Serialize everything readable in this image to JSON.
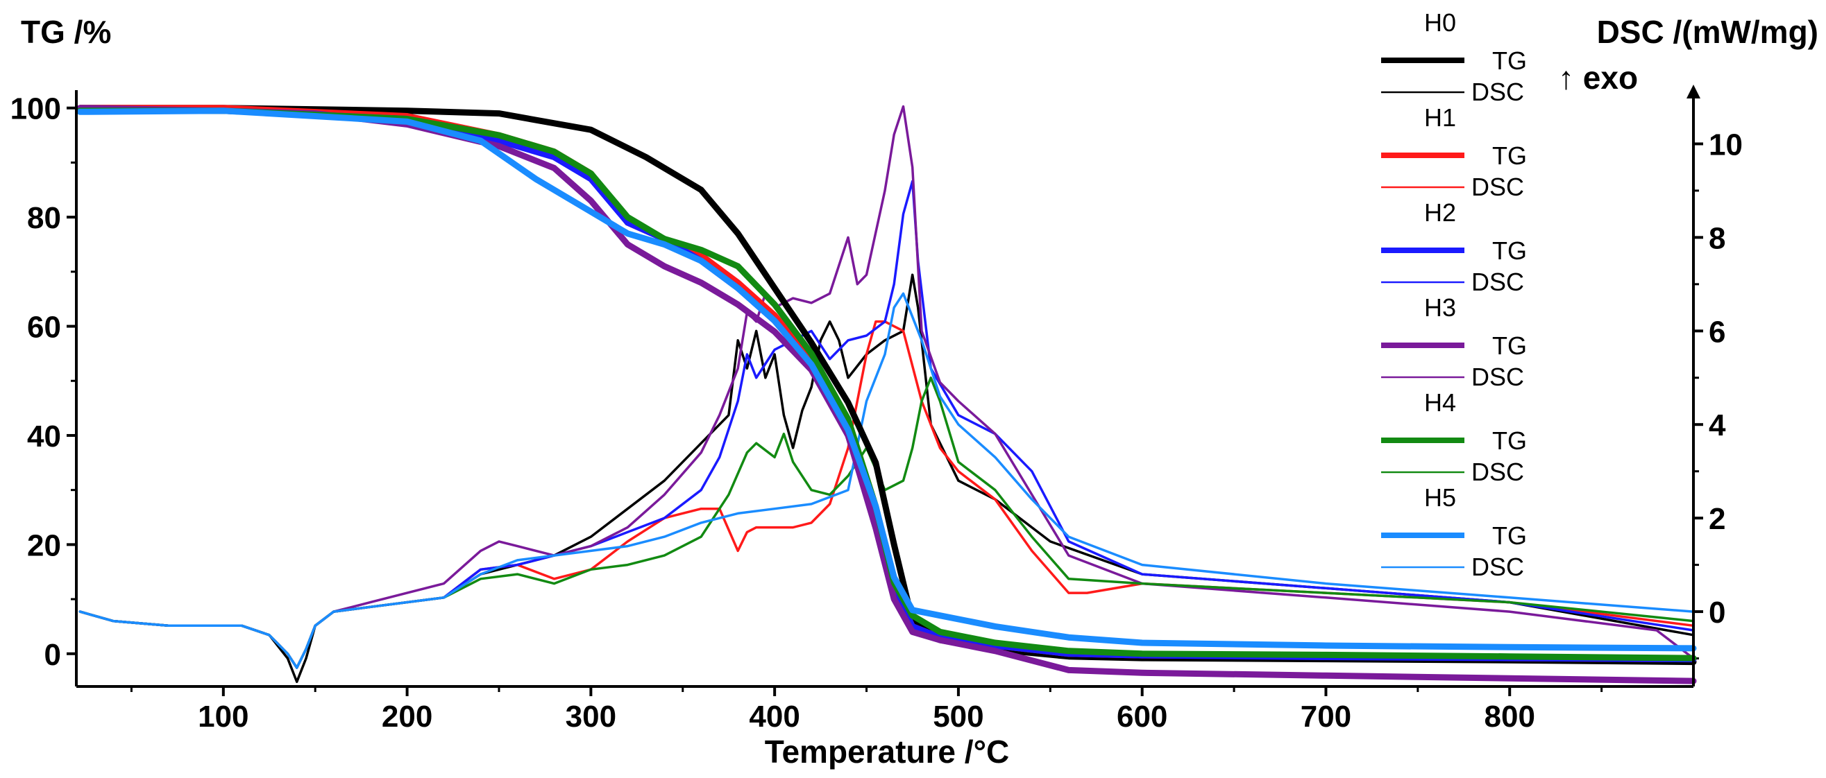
{
  "chart_data": {
    "type": "line",
    "title": "",
    "xlabel": "Temperature /°C",
    "ylabel_left": "TG /%",
    "ylabel_right": "DSC /(mW/mg)",
    "right_axis_note": "↑ exo",
    "xlim": [
      20,
      900
    ],
    "ylim_left": [
      -6,
      102
    ],
    "ylim_right": [
      -1.6,
      11
    ],
    "x_ticks": [
      100,
      200,
      300,
      400,
      500,
      600,
      700,
      800
    ],
    "y_left_ticks": [
      0,
      20,
      40,
      60,
      80,
      100
    ],
    "y_right_ticks": [
      0,
      2,
      4,
      6,
      8,
      10
    ],
    "legend_position": "top-right",
    "colors": {
      "H0": "#000000",
      "H1": "#ff1a1a",
      "H2": "#1a1aff",
      "H3": "#7a1a9a",
      "H4": "#128a12",
      "H5": "#1a8cff"
    },
    "legend": [
      {
        "sample": "H0",
        "tg": "TG",
        "dsc": "DSC"
      },
      {
        "sample": "H1",
        "tg": "TG",
        "dsc": "DSC"
      },
      {
        "sample": "H2",
        "tg": "TG",
        "dsc": "DSC"
      },
      {
        "sample": "H3",
        "tg": "TG",
        "dsc": "DSC"
      },
      {
        "sample": "H4",
        "tg": "TG",
        "dsc": "DSC"
      },
      {
        "sample": "H5",
        "tg": "TG",
        "dsc": "DSC"
      }
    ],
    "series": [
      {
        "name": "H0 TG",
        "sample": "H0",
        "kind": "TG",
        "x": [
          22,
          100,
          200,
          250,
          300,
          330,
          360,
          380,
          400,
          420,
          440,
          455,
          465,
          475,
          490,
          520,
          560,
          600,
          700,
          800,
          900
        ],
        "y": [
          100,
          100,
          99.5,
          99,
          96,
          91,
          85,
          77,
          67,
          57,
          46,
          35,
          20,
          6,
          2.5,
          0.8,
          -0.5,
          -0.8,
          -1,
          -1.2,
          -1.5
        ]
      },
      {
        "name": "H1 TG",
        "sample": "H1",
        "kind": "TG",
        "x": [
          22,
          100,
          200,
          250,
          280,
          300,
          320,
          340,
          360,
          380,
          400,
          420,
          440,
          455,
          465,
          475,
          490,
          520,
          560,
          600,
          700,
          800,
          900
        ],
        "y": [
          100,
          100,
          98.5,
          95,
          92,
          88,
          79,
          76,
          73,
          68,
          62,
          54,
          40,
          25,
          12,
          5,
          3,
          1.5,
          0,
          -0.3,
          -0.5,
          -0.8,
          -1
        ]
      },
      {
        "name": "H2 TG",
        "sample": "H2",
        "kind": "TG",
        "x": [
          22,
          100,
          200,
          250,
          280,
          300,
          320,
          340,
          360,
          380,
          400,
          420,
          440,
          455,
          465,
          475,
          490,
          520,
          560,
          600,
          700,
          800,
          900
        ],
        "y": [
          99.5,
          99.5,
          98,
          94,
          91,
          87,
          79,
          76,
          72,
          67,
          61,
          53,
          40,
          25,
          12,
          5,
          3,
          1.5,
          0,
          -0.3,
          -0.6,
          -0.8,
          -1
        ]
      },
      {
        "name": "H3 TG",
        "sample": "H3",
        "kind": "TG",
        "x": [
          22,
          100,
          150,
          200,
          250,
          280,
          300,
          320,
          340,
          360,
          380,
          400,
          420,
          440,
          455,
          465,
          475,
          490,
          520,
          560,
          600,
          700,
          800,
          900
        ],
        "y": [
          100,
          99.5,
          99,
          97,
          93,
          89,
          83,
          75,
          71,
          68,
          64,
          59,
          52,
          40,
          23,
          10,
          4,
          2.5,
          0.5,
          -3,
          -3.5,
          -4,
          -4.5,
          -5
        ]
      },
      {
        "name": "H4 TG",
        "sample": "H4",
        "kind": "TG",
        "x": [
          22,
          100,
          200,
          250,
          280,
          300,
          320,
          340,
          360,
          380,
          400,
          420,
          440,
          455,
          465,
          475,
          490,
          520,
          560,
          600,
          700,
          800,
          900
        ],
        "y": [
          99.5,
          99.5,
          98,
          95,
          92,
          88,
          80,
          76,
          74,
          71,
          64,
          55,
          43,
          27,
          13,
          7,
          4,
          2,
          0.5,
          0,
          -0.2,
          -0.5,
          -0.8
        ]
      },
      {
        "name": "H5 TG",
        "sample": "H5",
        "kind": "TG",
        "x": [
          22,
          100,
          200,
          240,
          270,
          300,
          320,
          340,
          360,
          380,
          400,
          420,
          440,
          455,
          465,
          475,
          490,
          520,
          560,
          600,
          700,
          800,
          900
        ],
        "y": [
          99.3,
          99.5,
          97.5,
          94,
          87,
          81,
          77,
          75,
          72,
          67,
          61,
          53,
          41,
          27,
          14,
          8,
          7,
          5,
          3,
          2,
          1.5,
          1.2,
          1
        ]
      },
      {
        "name": "H0 DSC",
        "sample": "H0",
        "kind": "DSC",
        "x": [
          22,
          40,
          70,
          110,
          125,
          135,
          140,
          145,
          150,
          160,
          180,
          220,
          240,
          260,
          280,
          300,
          320,
          340,
          360,
          375,
          380,
          385,
          390,
          395,
          400,
          405,
          410,
          415,
          420,
          425,
          430,
          435,
          440,
          450,
          460,
          470,
          475,
          478,
          485,
          500,
          520,
          550,
          600,
          700,
          800,
          900
        ],
        "y": [
          0,
          -0.2,
          -0.3,
          -0.3,
          -0.5,
          -1,
          -1.5,
          -1,
          -0.3,
          0,
          0.1,
          0.3,
          0.8,
          1,
          1.2,
          1.6,
          2.2,
          2.8,
          3.6,
          4.2,
          5.8,
          5.2,
          6.0,
          5,
          5.5,
          4.2,
          3.5,
          4.3,
          4.8,
          5.8,
          6.2,
          5.8,
          5.0,
          5.5,
          5.8,
          6.0,
          7.2,
          6.5,
          4,
          2.8,
          2.4,
          1.5,
          0.8,
          0.5,
          0.2,
          -0.5
        ]
      },
      {
        "name": "H1 DSC",
        "sample": "H1",
        "kind": "DSC",
        "x": [
          22,
          40,
          70,
          110,
          125,
          135,
          140,
          145,
          150,
          160,
          180,
          220,
          240,
          260,
          280,
          300,
          320,
          340,
          360,
          370,
          380,
          385,
          390,
          400,
          410,
          420,
          430,
          440,
          450,
          455,
          460,
          465,
          470,
          480,
          490,
          500,
          520,
          540,
          560,
          570,
          600,
          700,
          800,
          900
        ],
        "y": [
          0,
          -0.2,
          -0.3,
          -0.3,
          -0.5,
          -0.9,
          -1.2,
          -0.8,
          -0.3,
          0,
          0.1,
          0.3,
          0.9,
          1,
          0.7,
          0.9,
          1.5,
          2,
          2.2,
          2.2,
          1.3,
          1.7,
          1.8,
          1.8,
          1.8,
          1.9,
          2.3,
          3.5,
          5.5,
          6.2,
          6.2,
          6.1,
          6,
          4.5,
          3.5,
          3.0,
          2.4,
          1.3,
          0.4,
          0.4,
          0.6,
          0.4,
          0.2,
          -0.3
        ]
      },
      {
        "name": "H2 DSC",
        "sample": "H2",
        "kind": "DSC",
        "x": [
          22,
          40,
          70,
          110,
          125,
          135,
          140,
          145,
          150,
          160,
          180,
          220,
          240,
          260,
          280,
          300,
          320,
          340,
          360,
          370,
          380,
          385,
          390,
          395,
          400,
          410,
          420,
          430,
          440,
          450,
          460,
          465,
          470,
          475,
          478,
          485,
          500,
          520,
          540,
          560,
          600,
          700,
          800,
          900
        ],
        "y": [
          0,
          -0.2,
          -0.3,
          -0.3,
          -0.5,
          -0.9,
          -1.2,
          -0.8,
          -0.3,
          0,
          0.1,
          0.3,
          0.9,
          1,
          1.2,
          1.4,
          1.7,
          2,
          2.6,
          3.3,
          4.5,
          5.5,
          5,
          5.3,
          5.6,
          5.8,
          6.0,
          5.4,
          5.8,
          5.9,
          6.2,
          7.0,
          8.5,
          9.2,
          7.5,
          5.2,
          4.2,
          3.8,
          3.0,
          1.5,
          0.8,
          0.5,
          0.2,
          -0.4
        ]
      },
      {
        "name": "H3 DSC",
        "sample": "H3",
        "kind": "DSC",
        "x": [
          22,
          40,
          70,
          110,
          125,
          135,
          140,
          145,
          150,
          160,
          180,
          220,
          240,
          250,
          260,
          280,
          300,
          320,
          340,
          360,
          370,
          380,
          385,
          390,
          395,
          400,
          410,
          420,
          430,
          440,
          445,
          450,
          460,
          465,
          470,
          475,
          480,
          490,
          500,
          520,
          540,
          560,
          600,
          700,
          800,
          880,
          900
        ],
        "y": [
          0,
          -0.2,
          -0.3,
          -0.3,
          -0.5,
          -0.9,
          -1.2,
          -0.8,
          -0.3,
          0,
          0.2,
          0.6,
          1.3,
          1.5,
          1.4,
          1.2,
          1.4,
          1.8,
          2.5,
          3.4,
          4.2,
          5.2,
          6.4,
          6.2,
          6.8,
          6.5,
          6.7,
          6.6,
          6.8,
          8.0,
          7.0,
          7.2,
          9.0,
          10.2,
          10.8,
          9.5,
          6,
          4.9,
          4.5,
          3.8,
          2.5,
          1.2,
          0.6,
          0.3,
          0,
          -0.4,
          -1
        ]
      },
      {
        "name": "H4 DSC",
        "sample": "H4",
        "kind": "DSC",
        "x": [
          22,
          40,
          70,
          110,
          125,
          135,
          140,
          145,
          150,
          160,
          180,
          220,
          240,
          260,
          280,
          300,
          320,
          340,
          360,
          375,
          385,
          390,
          400,
          405,
          410,
          420,
          430,
          440,
          450,
          460,
          470,
          475,
          480,
          485,
          490,
          500,
          520,
          540,
          560,
          600,
          700,
          800,
          900
        ],
        "y": [
          0,
          -0.2,
          -0.3,
          -0.3,
          -0.5,
          -0.9,
          -1.2,
          -0.8,
          -0.3,
          0,
          0.1,
          0.3,
          0.7,
          0.8,
          0.6,
          0.9,
          1.0,
          1.2,
          1.6,
          2.5,
          3.4,
          3.6,
          3.3,
          3.8,
          3.2,
          2.6,
          2.5,
          2.9,
          3.5,
          2.6,
          2.8,
          3.5,
          4.5,
          5.0,
          4.5,
          3.2,
          2.6,
          1.6,
          0.7,
          0.6,
          0.4,
          0.2,
          -0.2
        ]
      },
      {
        "name": "H5 DSC",
        "sample": "H5",
        "kind": "DSC",
        "x": [
          22,
          40,
          70,
          110,
          125,
          135,
          140,
          145,
          150,
          160,
          180,
          220,
          240,
          260,
          280,
          300,
          320,
          340,
          360,
          380,
          400,
          420,
          440,
          450,
          460,
          465,
          470,
          480,
          490,
          500,
          520,
          540,
          560,
          600,
          700,
          800,
          900
        ],
        "y": [
          0,
          -0.2,
          -0.3,
          -0.3,
          -0.5,
          -0.9,
          -1.2,
          -0.8,
          -0.3,
          0,
          0.1,
          0.3,
          0.8,
          1.1,
          1.2,
          1.3,
          1.4,
          1.6,
          1.9,
          2.1,
          2.2,
          2.3,
          2.6,
          4.5,
          5.5,
          6.5,
          6.8,
          5.8,
          4.6,
          4.0,
          3.3,
          2.4,
          1.6,
          1.0,
          0.6,
          0.3,
          0
        ]
      }
    ]
  }
}
